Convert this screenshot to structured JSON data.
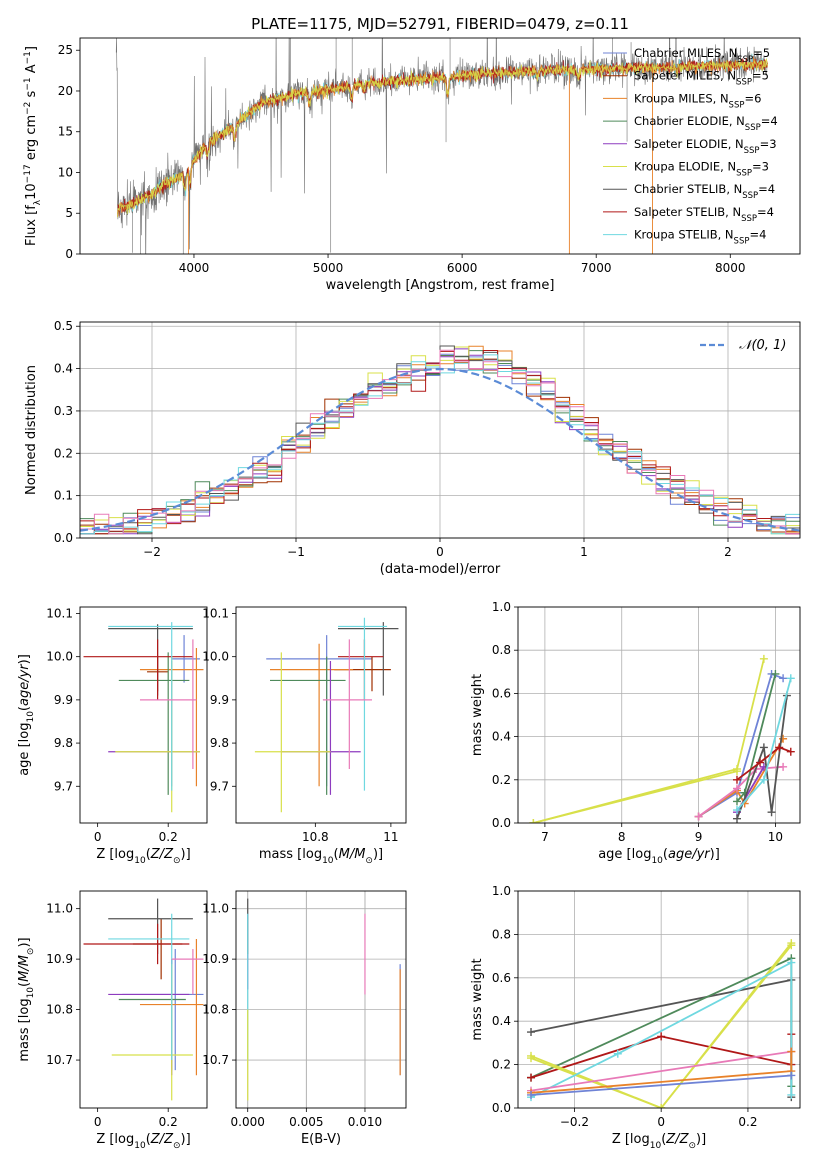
{
  "figure_title": "PLATE=1175, MJD=52791, FIBERID=0479, z=0.11",
  "colors": {
    "Chabrier MILES": "#6f83d6",
    "Salpeter MILES": "#a03000",
    "Kroupa MILES": "#e8822a",
    "Chabrier ELODIE": "#4f8a5b",
    "Salpeter ELODIE": "#8e3cbf",
    "Kroupa ELODIE": "#d8e04a",
    "Chabrier STELIB": "#555555",
    "Salpeter STELIB": "#b01818",
    "Kroupa STELIB": "#6fd8e0",
    "pink": "#e87ab8",
    "gaussian": "#5b8bd6"
  },
  "chart_data": [
    {
      "id": "spectrum",
      "type": "line",
      "title": "PLATE=1175, MJD=52791, FIBERID=0479, z=0.11",
      "xlabel": "wavelength [Angstrom, rest frame]",
      "ylabel": "Flux [f_λ 10^-17 erg cm^-2 s^-1 A^-1]",
      "xlim": [
        3150,
        8520
      ],
      "ylim": [
        0,
        26.5
      ],
      "xticks": [
        4000,
        5000,
        6000,
        7000,
        8000
      ],
      "yticks": [
        0,
        5,
        10,
        15,
        20,
        25
      ],
      "continuum": {
        "x": [
          3430,
          3550,
          3700,
          3800,
          3900,
          4000,
          4100,
          4300,
          4500,
          4800,
          5000,
          5200,
          5500,
          5800,
          6000,
          6300,
          6600,
          7000,
          7500,
          8000,
          8280
        ],
        "y": [
          5.6,
          6.2,
          7.5,
          8.8,
          9.5,
          11.5,
          13.5,
          15.8,
          18.5,
          19.8,
          20.1,
          20.8,
          21.2,
          21.6,
          21.9,
          22.3,
          22.5,
          22.7,
          22.9,
          23.2,
          23.3
        ]
      },
      "legend_title_list": [
        "Chabrier MILES, N_SSP=5",
        "Salpeter MILES, N_SSP=5",
        "Kroupa MILES, N_SSP=6",
        "Chabrier ELODIE, N_SSP=4",
        "Salpeter ELODIE, N_SSP=3",
        "Kroupa ELODIE, N_SSP=3",
        "Chabrier STELIB, N_SSP=4",
        "Salpeter STELIB, N_SSP=4",
        "Kroupa STELIB, N_SSP=4"
      ]
    },
    {
      "id": "residuals",
      "type": "line",
      "xlabel": "(data-model)/error",
      "ylabel": "Normed distribution",
      "xlim": [
        -2.5,
        2.5
      ],
      "ylim": [
        0,
        0.51
      ],
      "xticks": [
        -2,
        -1,
        0,
        1,
        2
      ],
      "yticks": [
        0.0,
        0.1,
        0.2,
        0.3,
        0.4,
        0.5
      ],
      "legend": "𝒩(0, 1)",
      "grid": true
    },
    {
      "id": "age_vs_Z",
      "type": "scatter",
      "xlabel": "Z [log10(Z/Z⊙)]",
      "ylabel": "age [log10(age/yr)]",
      "xlim": [
        -0.05,
        0.31
      ],
      "ylim": [
        9.615,
        10.115
      ],
      "xticks": [
        0.0,
        0.2
      ],
      "yticks": [
        9.7,
        9.8,
        9.9,
        10.0,
        10.1
      ],
      "points": [
        {
          "c": "Chabrier MILES",
          "x": 0.245,
          "y": 9.995,
          "xe": [
            0.21,
            0.29
          ],
          "ye": [
            9.94,
            10.05
          ]
        },
        {
          "c": "Salpeter MILES",
          "x": 0.17,
          "y": 9.965,
          "xe": [
            0.14,
            0.2
          ],
          "ye": [
            9.92,
            10.0
          ]
        },
        {
          "c": "Kroupa MILES",
          "x": 0.28,
          "y": 9.97,
          "xe": [
            0.12,
            0.3
          ],
          "ye": [
            9.7,
            10.02
          ]
        },
        {
          "c": "Chabrier ELODIE",
          "x": 0.2,
          "y": 9.945,
          "xe": [
            0.06,
            0.26
          ],
          "ye": [
            9.68,
            10.01
          ]
        },
        {
          "c": "Salpeter ELODIE",
          "x": 0.21,
          "y": 9.78,
          "xe": [
            0.03,
            0.29
          ],
          "ye": [
            9.7,
            9.99
          ]
        },
        {
          "c": "Kroupa ELODIE",
          "x": 0.21,
          "y": 9.78,
          "xe": [
            0.05,
            0.29
          ],
          "ye": [
            9.64,
            10.0
          ]
        },
        {
          "c": "Chabrier STELIB",
          "x": 0.17,
          "y": 10.065,
          "xe": [
            0.03,
            0.27
          ],
          "ye": [
            9.91,
            10.075
          ]
        },
        {
          "c": "Salpeter STELIB",
          "x": 0.17,
          "y": 10.0,
          "xe": [
            -0.04,
            0.27
          ],
          "ye": [
            9.9,
            10.04
          ]
        },
        {
          "c": "Kroupa STELIB",
          "x": 0.21,
          "y": 10.07,
          "xe": [
            0.03,
            0.27
          ],
          "ye": [
            9.69,
            10.08
          ]
        },
        {
          "c": "pink",
          "x": 0.27,
          "y": 9.9,
          "xe": [
            0.12,
            0.28
          ],
          "ye": [
            9.74,
            10.04
          ]
        }
      ]
    },
    {
      "id": "age_vs_mass",
      "type": "scatter",
      "xlabel": "mass [log10(M/M⊙)]",
      "ylabel": "",
      "xlim": [
        10.59,
        11.04
      ],
      "ylim": [
        9.615,
        10.115
      ],
      "xticks": [
        10.8,
        11.0
      ],
      "yticks": [
        9.7,
        9.8,
        9.9,
        10.0,
        10.1
      ],
      "points": [
        {
          "c": "Chabrier MILES",
          "x": 10.83,
          "y": 9.995,
          "xe": [
            10.67,
            10.95
          ],
          "ye": [
            9.7,
            10.05
          ]
        },
        {
          "c": "Salpeter MILES",
          "x": 10.95,
          "y": 9.97,
          "xe": [
            10.85,
            11.0
          ],
          "ye": [
            9.92,
            10.0
          ]
        },
        {
          "c": "Kroupa MILES",
          "x": 10.81,
          "y": 9.97,
          "xe": [
            10.68,
            10.9
          ],
          "ye": [
            9.7,
            10.03
          ]
        },
        {
          "c": "Chabrier ELODIE",
          "x": 10.83,
          "y": 9.945,
          "xe": [
            10.68,
            10.88
          ],
          "ye": [
            9.68,
            10.0
          ]
        },
        {
          "c": "Salpeter ELODIE",
          "x": 10.84,
          "y": 9.78,
          "xe": [
            10.71,
            10.92
          ],
          "ye": [
            9.68,
            9.99
          ]
        },
        {
          "c": "Kroupa ELODIE",
          "x": 10.71,
          "y": 9.78,
          "xe": [
            10.64,
            10.84
          ],
          "ye": [
            9.64,
            10.01
          ]
        },
        {
          "c": "Chabrier STELIB",
          "x": 10.98,
          "y": 10.065,
          "xe": [
            10.86,
            11.02
          ],
          "ye": [
            9.91,
            10.08
          ]
        },
        {
          "c": "Salpeter STELIB",
          "x": 10.93,
          "y": 10.0,
          "xe": [
            10.86,
            10.98
          ],
          "ye": [
            9.9,
            10.04
          ]
        },
        {
          "c": "Kroupa STELIB",
          "x": 10.93,
          "y": 10.07,
          "xe": [
            10.86,
            10.99
          ],
          "ye": [
            9.69,
            10.09
          ]
        },
        {
          "c": "pink",
          "x": 10.89,
          "y": 9.9,
          "xe": [
            10.82,
            10.95
          ],
          "ye": [
            9.74,
            10.04
          ]
        }
      ]
    },
    {
      "id": "massweight_vs_age",
      "type": "line",
      "xlabel": "age [log10(age/yr)]",
      "ylabel": "mass weight",
      "xlim": [
        6.65,
        10.32
      ],
      "ylim": [
        0,
        1.0
      ],
      "xticks": [
        7,
        8,
        9,
        10
      ],
      "yticks": [
        0.0,
        0.2,
        0.4,
        0.6,
        0.8,
        1.0
      ],
      "grid": true
    },
    {
      "id": "mass_vs_Z",
      "type": "scatter",
      "xlabel": "Z [log10(Z/Z⊙)]",
      "ylabel": "mass [log10(M/M⊙)]",
      "xlim": [
        -0.05,
        0.31
      ],
      "ylim": [
        10.605,
        11.035
      ],
      "xticks": [
        0.0,
        0.2
      ],
      "yticks": [
        10.7,
        10.8,
        10.9,
        11.0
      ],
      "points": [
        {
          "c": "Chabrier MILES",
          "x": 0.22,
          "y": 10.83,
          "xe": [
            0.07,
            0.3
          ],
          "ye": [
            10.68,
            10.92
          ]
        },
        {
          "c": "Salpeter MILES",
          "x": 0.18,
          "y": 10.93,
          "xe": [
            0.1,
            0.24
          ],
          "ye": [
            10.86,
            10.98
          ]
        },
        {
          "c": "Kroupa MILES",
          "x": 0.28,
          "y": 10.81,
          "xe": [
            0.12,
            0.3
          ],
          "ye": [
            10.67,
            10.94
          ]
        },
        {
          "c": "Chabrier ELODIE",
          "x": 0.21,
          "y": 10.82,
          "xe": [
            0.06,
            0.25
          ],
          "ye": [
            10.68,
            10.9
          ]
        },
        {
          "c": "Salpeter ELODIE",
          "x": 0.21,
          "y": 10.83,
          "xe": [
            0.03,
            0.26
          ],
          "ye": [
            10.67,
            10.9
          ]
        },
        {
          "c": "Kroupa ELODIE",
          "x": 0.21,
          "y": 10.71,
          "xe": [
            0.04,
            0.27
          ],
          "ye": [
            10.62,
            10.89
          ]
        },
        {
          "c": "Chabrier STELIB",
          "x": 0.17,
          "y": 10.98,
          "xe": [
            0.03,
            0.27
          ],
          "ye": [
            10.91,
            11.02
          ]
        },
        {
          "c": "Salpeter STELIB",
          "x": 0.17,
          "y": 10.93,
          "xe": [
            -0.04,
            0.26
          ],
          "ye": [
            10.89,
            10.97
          ]
        },
        {
          "c": "Kroupa STELIB",
          "x": 0.21,
          "y": 10.94,
          "xe": [
            0.03,
            0.26
          ],
          "ye": [
            10.7,
            10.99
          ]
        },
        {
          "c": "pink",
          "x": 0.27,
          "y": 10.9,
          "xe": [
            0.21,
            0.3
          ],
          "ye": [
            10.83,
            10.92
          ]
        }
      ]
    },
    {
      "id": "mass_vs_ebv",
      "type": "scatter",
      "xlabel": "E(B-V)",
      "ylabel": "",
      "xlim": [
        -0.001,
        0.0135
      ],
      "ylim": [
        10.605,
        11.035
      ],
      "xticks": [
        0.0,
        0.005,
        0.01
      ],
      "xtick_labels": [
        "0.000",
        "0.005",
        "0.010"
      ],
      "yticks": [
        10.7,
        10.8,
        10.9,
        11.0
      ],
      "points": [
        {
          "c": "Chabrier MILES",
          "x": 0.013,
          "ye": [
            10.67,
            10.89
          ]
        },
        {
          "c": "Kroupa MILES",
          "x": 0.013,
          "ye": [
            10.67,
            10.88
          ]
        },
        {
          "c": "pink",
          "x": 0.01,
          "ye": [
            10.83,
            10.99
          ]
        },
        {
          "c": "Salpeter ELODIE",
          "x": 0.0,
          "ye": [
            10.84,
            10.99
          ]
        },
        {
          "c": "Chabrier STELIB",
          "x": 0.0,
          "ye": [
            10.91,
            11.02
          ]
        },
        {
          "c": "Kroupa STELIB",
          "x": 0.0,
          "ye": [
            10.7,
            10.99
          ]
        },
        {
          "c": "Kroupa ELODIE",
          "x": 0.0,
          "ye": [
            10.62,
            10.8
          ]
        }
      ]
    },
    {
      "id": "massweight_vs_Z",
      "type": "line",
      "xlabel": "Z [log10(Z/Z⊙)]",
      "ylabel": "mass weight",
      "xlim": [
        -0.33,
        0.32
      ],
      "ylim": [
        0,
        1.0
      ],
      "xticks": [
        -0.2,
        0.0,
        0.2
      ],
      "yticks": [
        0.0,
        0.2,
        0.4,
        0.6,
        0.8,
        1.0
      ],
      "grid": true
    }
  ],
  "legend_labels": [
    "Chabrier MILES, N",
    "Salpeter MILES, N",
    "Kroupa MILES, N",
    "Chabrier ELODIE, N",
    "Salpeter ELODIE, N",
    "Kroupa ELODIE, N",
    "Chabrier STELIB, N",
    "Salpeter STELIB, N",
    "Kroupa STELIB, N"
  ],
  "legend_suffix": [
    "=5",
    "=5",
    "=6",
    "=4",
    "=3",
    "=3",
    "=4",
    "=4",
    "=4"
  ],
  "legend_sub": "SSP",
  "legend_keys": [
    "Chabrier MILES",
    "Salpeter MILES",
    "Kroupa MILES",
    "Chabrier ELODIE",
    "Salpeter ELODIE",
    "Kroupa ELODIE",
    "Chabrier STELIB",
    "Salpeter STELIB",
    "Kroupa STELIB"
  ]
}
